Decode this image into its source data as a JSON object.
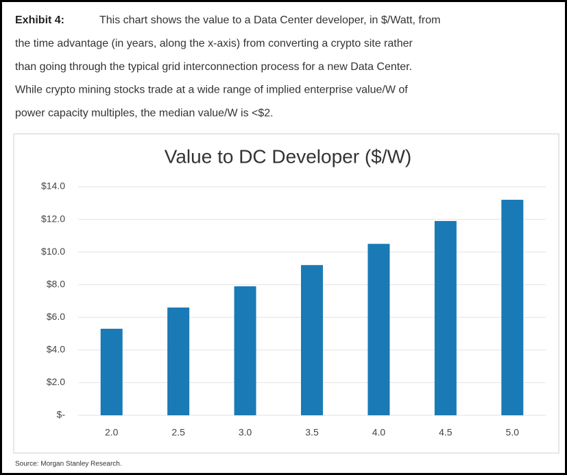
{
  "exhibit_label": "Exhibit 4:",
  "caption_lines": [
    "This chart shows the value to a Data Center developer, in $/Watt, from",
    "the time advantage (in years, along the x-axis) from converting a crypto site rather",
    "than going through the typical grid interconnection process for a new Data Center.",
    "While crypto mining stocks trade at a wide range of implied enterprise value/W of",
    "power capacity multiples, the median value/W is <$2."
  ],
  "source": "Source: Morgan Stanley Research.",
  "chart_data": {
    "type": "bar",
    "title": "Value to DC Developer ($/W)",
    "categories": [
      "2.0",
      "2.5",
      "3.0",
      "3.5",
      "4.0",
      "4.5",
      "5.0"
    ],
    "values": [
      5.3,
      6.6,
      7.9,
      9.2,
      10.5,
      11.9,
      13.2
    ],
    "color": "#1a7ab5",
    "ylim": [
      0,
      14
    ],
    "yticks": [
      {
        "value": 0,
        "label": "$-"
      },
      {
        "value": 2,
        "label": "$2.0"
      },
      {
        "value": 4,
        "label": "$4.0"
      },
      {
        "value": 6,
        "label": "$6.0"
      },
      {
        "value": 8,
        "label": "$8.0"
      },
      {
        "value": 10,
        "label": "$10.0"
      },
      {
        "value": 12,
        "label": "$12.0"
      },
      {
        "value": 14,
        "label": "$14.0"
      }
    ],
    "grid": true
  }
}
